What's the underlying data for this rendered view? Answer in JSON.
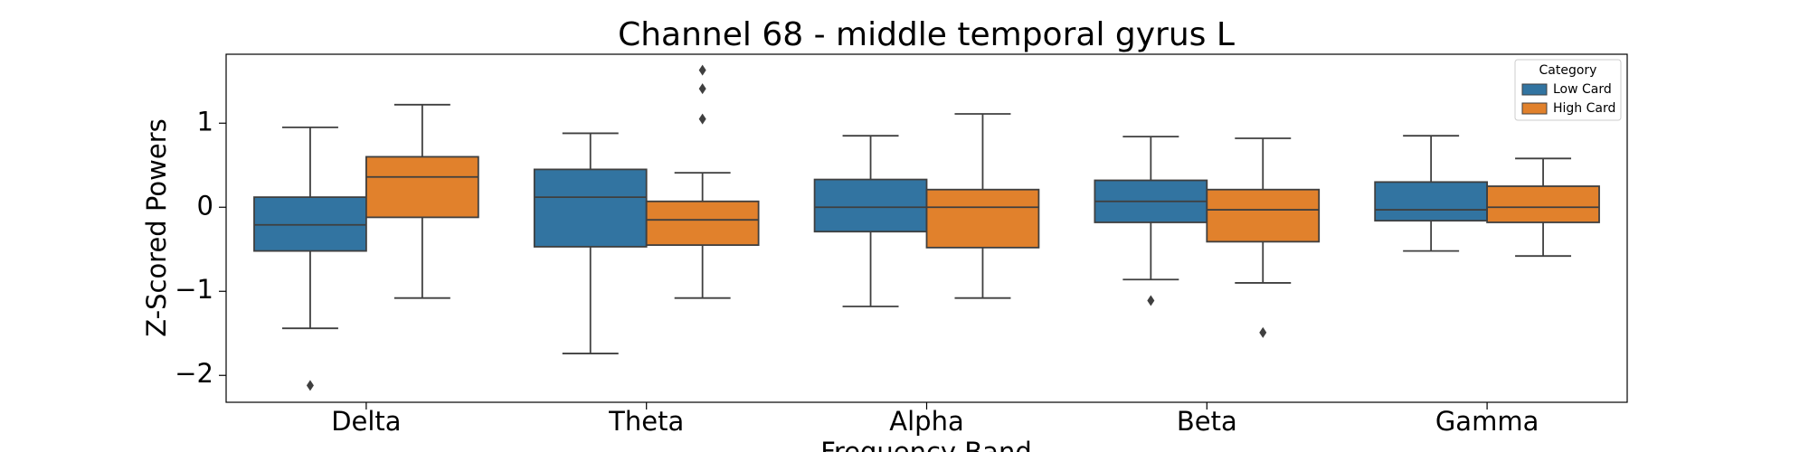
{
  "chart_data": {
    "type": "box",
    "title": "Channel 68 - middle temporal gyrus L",
    "x_label": "Frequency Band",
    "y_label": "Z-Scored Powers",
    "categories": [
      "Delta",
      "Theta",
      "Alpha",
      "Beta",
      "Gamma"
    ],
    "legend_title": "Category",
    "legend_position": "upper right",
    "ylim": [
      -2.32,
      1.82
    ],
    "yticks": [
      {
        "value": -2,
        "label": "−2"
      },
      {
        "value": -1,
        "label": "−1"
      },
      0,
      1
    ],
    "series": [
      {
        "name": "Low Card",
        "color": "#3274a1",
        "whisker_low": [
          -1.44,
          -1.74,
          -1.18,
          -0.86,
          -0.52
        ],
        "q1": [
          -0.52,
          -0.47,
          -0.29,
          -0.18,
          -0.16
        ],
        "median": [
          -0.21,
          0.12,
          0,
          0.07,
          -0.03
        ],
        "q3": [
          0.12,
          0.45,
          0.33,
          0.32,
          0.3
        ],
        "whisker_high": [
          0.95,
          0.88,
          0.85,
          0.84,
          0.85
        ],
        "outliers": [
          [
            -2.12
          ],
          [],
          [],
          [
            -1.11
          ],
          []
        ]
      },
      {
        "name": "High Card",
        "color": "#e1812c",
        "whisker_low": [
          -1.08,
          -1.08,
          -1.08,
          -0.9,
          -0.58
        ],
        "q1": [
          -0.12,
          -0.45,
          -0.48,
          -0.41,
          -0.18
        ],
        "median": [
          0.36,
          -0.15,
          0,
          -0.03,
          0
        ],
        "q3": [
          0.6,
          0.07,
          0.21,
          0.21,
          0.25
        ],
        "whisker_high": [
          1.22,
          0.41,
          1.11,
          0.82,
          0.58
        ],
        "outliers": [
          [],
          [
            1.63,
            1.41,
            1.05
          ],
          [],
          [
            -1.49
          ],
          []
        ]
      }
    ]
  }
}
